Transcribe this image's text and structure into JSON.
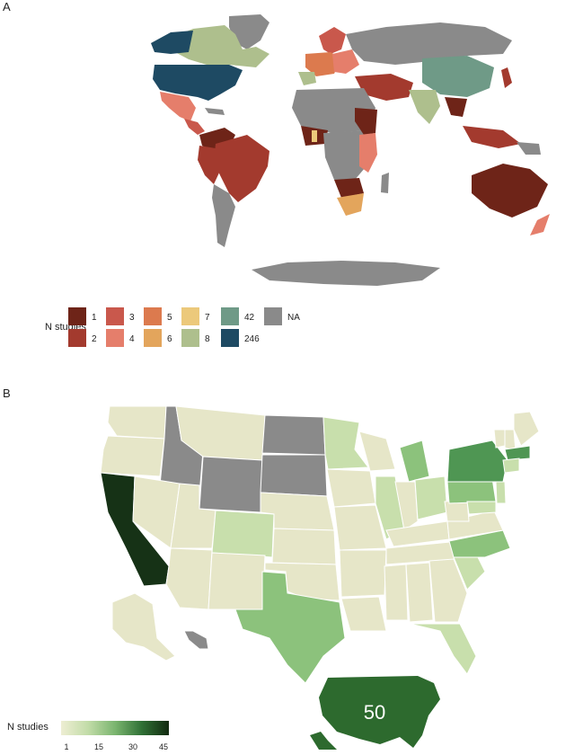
{
  "panel_a": {
    "label": "A",
    "legend": {
      "title": "N studies",
      "items": [
        {
          "label": "1",
          "color": "#6e2418"
        },
        {
          "label": "2",
          "color": "#a33a2e"
        },
        {
          "label": "3",
          "color": "#c9584c"
        },
        {
          "label": "4",
          "color": "#e57e6b"
        },
        {
          "label": "5",
          "color": "#dc7a4e"
        },
        {
          "label": "6",
          "color": "#e3a55c"
        },
        {
          "label": "7",
          "color": "#ecc97b"
        },
        {
          "label": "8",
          "color": "#aebf8d"
        },
        {
          "label": "42",
          "color": "#6f9a87"
        },
        {
          "label": "246",
          "color": "#1e4a63"
        },
        {
          "label": "NA",
          "color": "#8a8a8a"
        }
      ]
    }
  },
  "panel_b": {
    "label": "B",
    "legend": {
      "title": "N studies",
      "ticks": [
        "1",
        "15",
        "30",
        "45"
      ],
      "gradient": [
        "#eeeed3",
        "#c2dca8",
        "#7bb56f",
        "#2f7035",
        "#122a10"
      ]
    },
    "inset_value": "50"
  },
  "colors": {
    "na": "#8a8a8a",
    "low": "#e6e6c8",
    "mid_light": "#c8dfac",
    "mid": "#8cc27c",
    "high": "#4f9653",
    "dark": "#163216",
    "inset": "#2d6a2e"
  }
}
